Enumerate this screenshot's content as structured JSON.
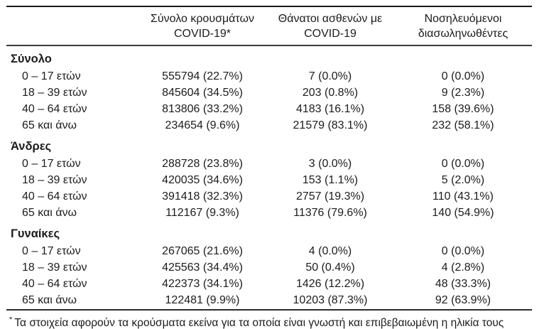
{
  "table": {
    "col_headers": [
      {
        "line1": "Σύνολο κρουσμάτων",
        "line2": "COVID-19*"
      },
      {
        "line1": "Θάνατοι ασθενών με",
        "line2": "COVID-19"
      },
      {
        "line1": "Νοσηλευόμενοι",
        "line2": "διασωληνωθέντες"
      }
    ],
    "sections": [
      {
        "label": "Σύνολο",
        "rows": [
          {
            "label": "0 – 17 ετών",
            "cases": "555794 (22.7%)",
            "deaths": "7 (0.0%)",
            "intubated": "0 (0.0%)"
          },
          {
            "label": "18 – 39 ετών",
            "cases": "845604 (34.5%)",
            "deaths": "203 (0.8%)",
            "intubated": "9 (2.3%)"
          },
          {
            "label": "40 – 64 ετών",
            "cases": "813806 (33.2%)",
            "deaths": "4183 (16.1%)",
            "intubated": "158 (39.6%)"
          },
          {
            "label": "65 και άνω",
            "cases": "234654 (9.6%)",
            "deaths": "21579 (83.1%)",
            "intubated": "232 (58.1%)"
          }
        ]
      },
      {
        "label": "Άνδρες",
        "rows": [
          {
            "label": "0 – 17 ετών",
            "cases": "288728 (23.8%)",
            "deaths": "3 (0.0%)",
            "intubated": "0 (0.0%)"
          },
          {
            "label": "18 – 39 ετών",
            "cases": "420035 (34.6%)",
            "deaths": "153 (1.1%)",
            "intubated": "5 (2.0%)"
          },
          {
            "label": "40 – 64 ετών",
            "cases": "391418 (32.3%)",
            "deaths": "2757 (19.3%)",
            "intubated": "110 (43.1%)"
          },
          {
            "label": "65 και άνω",
            "cases": "112167 (9.3%)",
            "deaths": "11376 (79.6%)",
            "intubated": "140 (54.9%)"
          }
        ]
      },
      {
        "label": "Γυναίκες",
        "rows": [
          {
            "label": "0 – 17 ετών",
            "cases": "267065 (21.6%)",
            "deaths": "4 (0.0%)",
            "intubated": "0 (0.0%)"
          },
          {
            "label": "18 – 39 ετών",
            "cases": "425563 (34.4%)",
            "deaths": "50 (0.4%)",
            "intubated": "4 (2.8%)"
          },
          {
            "label": "40 – 64 ετών",
            "cases": "422373 (34.1%)",
            "deaths": "1426 (12.2%)",
            "intubated": "48 (33.3%)"
          },
          {
            "label": "65 και άνω",
            "cases": "122481 (9.9%)",
            "deaths": "10203 (87.3%)",
            "intubated": "92 (63.9%)"
          }
        ]
      }
    ],
    "footnote": {
      "marker": "*",
      "text": "Τα στοιχεία αφορούν τα κρούσματα εκείνα για τα οποία είναι γνωστή και επιβεβαιωμένη η ηλικία τους"
    }
  },
  "colors": {
    "text": "#1c1c1c",
    "rule": "#1a1a1a",
    "background": "#ffffff"
  }
}
